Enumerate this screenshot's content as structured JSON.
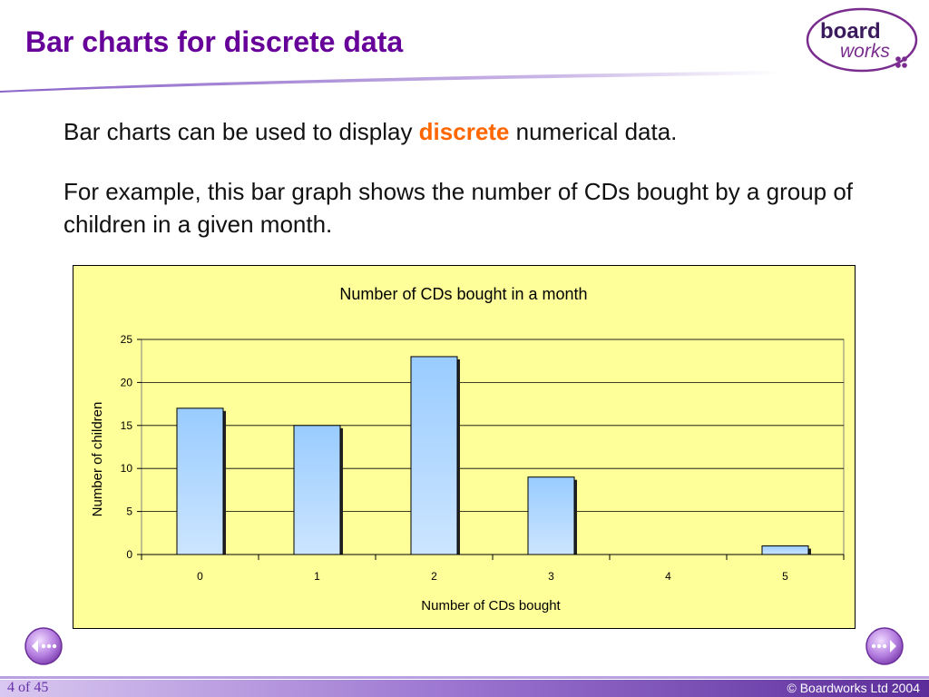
{
  "slide": {
    "title": "Bar charts for discrete data",
    "para1_prefix": "Bar charts can be used to display ",
    "para1_keyword": "discrete",
    "para1_suffix": " numerical data.",
    "para2": "For example, this bar graph shows the number of CDs bought by a group of children in a given month."
  },
  "logo": {
    "line1": "board",
    "line2": "works"
  },
  "footer": {
    "page": "4 of 45",
    "copyright": "© Boardworks Ltd 2004"
  },
  "colors": {
    "title": "#660099",
    "keyword": "#ff6600",
    "chart_bg": "#ffff99",
    "bar_top": "#99ccff",
    "bar_bottom": "#cce5ff"
  },
  "icons": {
    "back": "back-arrow-icon",
    "forward": "forward-arrow-icon"
  },
  "chart_data": {
    "type": "bar",
    "title": "Number of CDs bought in a month",
    "xlabel": "Number of CDs bought",
    "ylabel": "Number of children",
    "categories": [
      "0",
      "1",
      "2",
      "3",
      "4",
      "5"
    ],
    "values": [
      17,
      15,
      23,
      9,
      0,
      1
    ],
    "ylim": [
      0,
      25
    ],
    "yticks": [
      0,
      5,
      10,
      15,
      20,
      25
    ],
    "grid": true,
    "legend": "none"
  }
}
